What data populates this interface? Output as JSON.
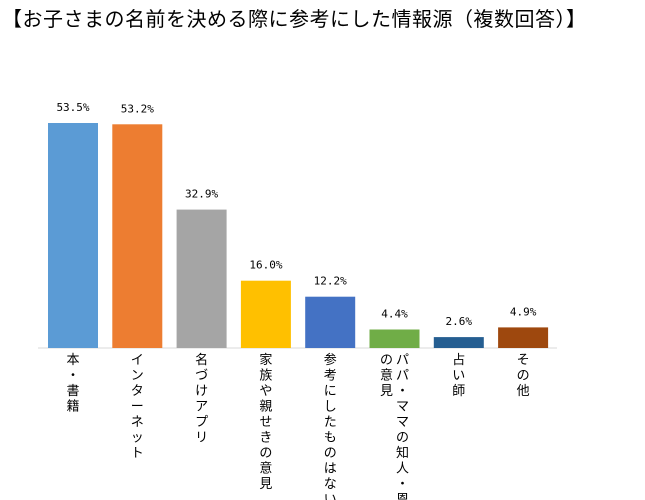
{
  "chart_data": {
    "type": "bar",
    "title": "【お子さまの名前を決める際に参考にした情報源（複数回答）】",
    "categories": [
      "本・書籍",
      "インターネット",
      "名づけアプリ",
      "家族や親せきの意見",
      "参考にしたものはない",
      "パパ・ママの知人・恩人の意見",
      "占い師",
      "その他"
    ],
    "values": [
      53.5,
      53.2,
      32.9,
      16.0,
      12.2,
      4.4,
      2.6,
      4.9
    ],
    "value_labels": [
      "53.5%",
      "53.2%",
      "32.9%",
      "16.0%",
      "12.2%",
      "4.4%",
      "2.6%",
      "4.9%"
    ],
    "colors": [
      "#5B9BD5",
      "#ED7D31",
      "#A5A5A5",
      "#FFC000",
      "#4472C4",
      "#70AD47",
      "#255E91",
      "#9E480E"
    ],
    "unit": "%",
    "ylim": [
      0,
      53.5
    ],
    "grid": false,
    "legend": "none",
    "label_orientation": "vertical"
  }
}
